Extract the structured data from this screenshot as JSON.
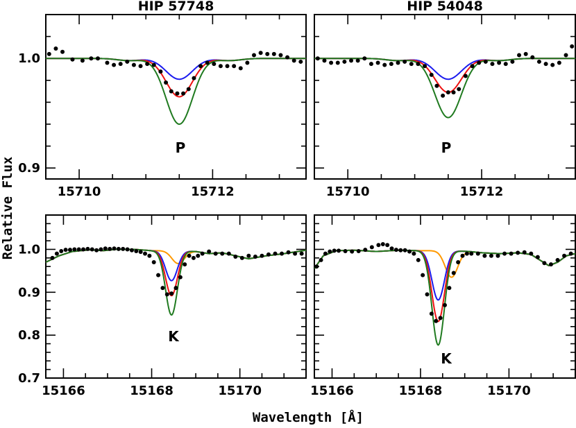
{
  "figure": {
    "xlabel": "Wavelength [Å]",
    "ylabel": "Relative Flux"
  },
  "colors": {
    "blue": "#1a1aee",
    "red": "#ee1111",
    "green": "#1f7a1f",
    "orange": "#ff9900",
    "obs": "#000000"
  },
  "chart_data": [
    {
      "type": "line",
      "title": "HIP 57748",
      "line_label": "P",
      "xlim": [
        15709.5,
        15713.4
      ],
      "ylim": [
        0.89,
        1.04
      ],
      "xticks": [
        15710,
        15712
      ],
      "yticks": [
        0.9,
        1.0
      ],
      "show_xtick_labels": true,
      "show_ytick_labels": true,
      "model": {
        "center": 15711.5,
        "continuum_dip": 0.002
      },
      "series": [
        {
          "color": "blue",
          "depth": 0.019,
          "width": 0.28
        },
        {
          "color": "red",
          "depth": 0.035,
          "width": 0.28
        },
        {
          "color": "green",
          "depth": 0.06,
          "width": 0.28
        }
      ],
      "observed": [
        [
          15709.55,
          1.004
        ],
        [
          15709.65,
          1.009
        ],
        [
          15709.75,
          1.006
        ],
        [
          15709.9,
          0.999
        ],
        [
          15710.05,
          0.998
        ],
        [
          15710.18,
          1.0
        ],
        [
          15710.28,
          1.0
        ],
        [
          15710.42,
          0.996
        ],
        [
          15710.52,
          0.994
        ],
        [
          15710.62,
          0.995
        ],
        [
          15710.72,
          0.997
        ],
        [
          15710.82,
          0.994
        ],
        [
          15710.92,
          0.993
        ],
        [
          15711.02,
          0.995
        ],
        [
          15711.12,
          0.994
        ],
        [
          15711.22,
          0.988
        ],
        [
          15711.3,
          0.978
        ],
        [
          15711.38,
          0.97
        ],
        [
          15711.47,
          0.968
        ],
        [
          15711.56,
          0.968
        ],
        [
          15711.64,
          0.972
        ],
        [
          15711.72,
          0.982
        ],
        [
          15711.82,
          0.993
        ],
        [
          15711.92,
          0.996
        ],
        [
          15712.02,
          0.995
        ],
        [
          15712.12,
          0.993
        ],
        [
          15712.22,
          0.993
        ],
        [
          15712.32,
          0.993
        ],
        [
          15712.42,
          0.991
        ],
        [
          15712.52,
          0.996
        ],
        [
          15712.62,
          1.003
        ],
        [
          15712.72,
          1.005
        ],
        [
          15712.82,
          1.004
        ],
        [
          15712.92,
          1.004
        ],
        [
          15713.02,
          1.003
        ],
        [
          15713.12,
          1.001
        ],
        [
          15713.22,
          0.998
        ],
        [
          15713.32,
          0.997
        ]
      ]
    },
    {
      "type": "line",
      "title": "HIP 54048",
      "line_label": "P",
      "xlim": [
        15709.5,
        15713.4
      ],
      "ylim": [
        0.89,
        1.04
      ],
      "xticks": [
        15710,
        15712
      ],
      "yticks": [
        0.9,
        1.0
      ],
      "show_xtick_labels": true,
      "show_ytick_labels": false,
      "model": {
        "center": 15711.5,
        "continuum_dip": 0.002
      },
      "series": [
        {
          "color": "blue",
          "depth": 0.019,
          "width": 0.28
        },
        {
          "color": "red",
          "depth": 0.031,
          "width": 0.28
        },
        {
          "color": "green",
          "depth": 0.054,
          "width": 0.28
        }
      ],
      "observed": [
        [
          15709.55,
          1.0
        ],
        [
          15709.65,
          0.998
        ],
        [
          15709.75,
          0.996
        ],
        [
          15709.85,
          0.996
        ],
        [
          15709.95,
          0.997
        ],
        [
          15710.05,
          0.998
        ],
        [
          15710.15,
          0.998
        ],
        [
          15710.25,
          1.0
        ],
        [
          15710.35,
          0.995
        ],
        [
          15710.45,
          0.996
        ],
        [
          15710.55,
          0.994
        ],
        [
          15710.65,
          0.995
        ],
        [
          15710.75,
          0.996
        ],
        [
          15710.85,
          0.997
        ],
        [
          15710.95,
          0.995
        ],
        [
          15711.05,
          0.995
        ],
        [
          15711.15,
          0.993
        ],
        [
          15711.25,
          0.985
        ],
        [
          15711.33,
          0.975
        ],
        [
          15711.42,
          0.966
        ],
        [
          15711.5,
          0.969
        ],
        [
          15711.58,
          0.969
        ],
        [
          15711.66,
          0.972
        ],
        [
          15711.76,
          0.984
        ],
        [
          15711.86,
          0.993
        ],
        [
          15711.96,
          0.996
        ],
        [
          15712.06,
          0.997
        ],
        [
          15712.16,
          0.995
        ],
        [
          15712.26,
          0.996
        ],
        [
          15712.36,
          0.995
        ],
        [
          15712.46,
          0.997
        ],
        [
          15712.56,
          1.003
        ],
        [
          15712.66,
          1.004
        ],
        [
          15712.76,
          1.001
        ],
        [
          15712.86,
          0.997
        ],
        [
          15712.96,
          0.995
        ],
        [
          15713.06,
          0.994
        ],
        [
          15713.16,
          0.996
        ],
        [
          15713.26,
          1.003
        ],
        [
          15713.35,
          1.011
        ]
      ]
    },
    {
      "type": "line",
      "title": "",
      "line_label": "K",
      "xlim": [
        15165.6,
        15171.5
      ],
      "ylim": [
        0.7,
        1.08
      ],
      "xticks": [
        15166,
        15168,
        15170
      ],
      "yticks": [
        0.7,
        0.8,
        0.9,
        1.0
      ],
      "show_xtick_labels": true,
      "show_ytick_labels": true,
      "model": {
        "center": 15168.45,
        "continuum": [
          [
            15165.6,
            0.97
          ],
          [
            15165.9,
            0.985
          ],
          [
            15166.2,
            0.995
          ],
          [
            15166.6,
            0.999
          ],
          [
            15166.9,
            0.997
          ],
          [
            15167.2,
            1.0
          ],
          [
            15167.6,
            1.0
          ],
          [
            15168.0,
            0.997
          ],
          [
            15168.6,
            0.997
          ],
          [
            15169.0,
            0.995
          ],
          [
            15169.3,
            0.99
          ],
          [
            15169.6,
            0.992
          ],
          [
            15169.9,
            0.985
          ],
          [
            15170.2,
            0.978
          ],
          [
            15170.6,
            0.985
          ],
          [
            15171.0,
            0.99
          ],
          [
            15171.5,
            0.998
          ]
        ]
      },
      "series": [
        {
          "color": "orange",
          "depth": 0.03,
          "width": 0.2,
          "center": 15168.6
        },
        {
          "color": "blue",
          "depth": 0.07,
          "width": 0.19
        },
        {
          "color": "red",
          "depth": 0.105,
          "width": 0.19
        },
        {
          "color": "green",
          "depth": 0.15,
          "width": 0.19
        }
      ],
      "observed": [
        [
          15165.75,
          0.98
        ],
        [
          15165.85,
          0.99
        ],
        [
          15165.95,
          0.996
        ],
        [
          15166.05,
          0.999
        ],
        [
          15166.15,
          0.999
        ],
        [
          15166.25,
          1.0
        ],
        [
          15166.35,
          1.0
        ],
        [
          15166.45,
          1.0
        ],
        [
          15166.55,
          1.001
        ],
        [
          15166.65,
          1.0
        ],
        [
          15166.75,
          0.998
        ],
        [
          15166.85,
          1.0
        ],
        [
          15166.95,
          1.002
        ],
        [
          15167.05,
          1.001
        ],
        [
          15167.15,
          1.002
        ],
        [
          15167.25,
          1.001
        ],
        [
          15167.35,
          1.001
        ],
        [
          15167.45,
          1.0
        ],
        [
          15167.55,
          0.998
        ],
        [
          15167.65,
          0.996
        ],
        [
          15167.75,
          0.994
        ],
        [
          15167.85,
          0.99
        ],
        [
          15167.95,
          0.985
        ],
        [
          15168.05,
          0.97
        ],
        [
          15168.15,
          0.94
        ],
        [
          15168.25,
          0.91
        ],
        [
          15168.35,
          0.895
        ],
        [
          15168.45,
          0.897
        ],
        [
          15168.55,
          0.91
        ],
        [
          15168.65,
          0.935
        ],
        [
          15168.75,
          0.965
        ],
        [
          15168.85,
          0.985
        ],
        [
          15168.95,
          0.98
        ],
        [
          15169.05,
          0.985
        ],
        [
          15169.15,
          0.99
        ],
        [
          15169.3,
          0.995
        ],
        [
          15169.45,
          0.99
        ],
        [
          15169.6,
          0.99
        ],
        [
          15169.75,
          0.99
        ],
        [
          15169.9,
          0.983
        ],
        [
          15170.05,
          0.98
        ],
        [
          15170.2,
          0.985
        ],
        [
          15170.35,
          0.983
        ],
        [
          15170.5,
          0.985
        ],
        [
          15170.65,
          0.988
        ],
        [
          15170.8,
          0.99
        ],
        [
          15170.95,
          0.99
        ],
        [
          15171.1,
          0.993
        ],
        [
          15171.25,
          0.99
        ],
        [
          15171.4,
          0.99
        ]
      ]
    },
    {
      "type": "line",
      "title": "",
      "line_label": "K",
      "xlim": [
        15165.6,
        15171.5
      ],
      "ylim": [
        0.7,
        1.08
      ],
      "xticks": [
        15166,
        15168,
        15170
      ],
      "yticks": [
        0.7,
        0.8,
        0.9,
        1.0
      ],
      "show_xtick_labels": true,
      "show_ytick_labels": false,
      "model": {
        "center": 15168.4,
        "continuum": [
          [
            15165.6,
            0.955
          ],
          [
            15165.8,
            0.985
          ],
          [
            15166.1,
            0.997
          ],
          [
            15166.5,
            0.998
          ],
          [
            15167.0,
            0.995
          ],
          [
            15167.5,
            0.998
          ],
          [
            15168.0,
            0.997
          ],
          [
            15168.7,
            0.997
          ],
          [
            15169.1,
            0.995
          ],
          [
            15169.4,
            0.992
          ],
          [
            15169.8,
            0.99
          ],
          [
            15170.2,
            0.992
          ],
          [
            15170.5,
            0.988
          ],
          [
            15170.7,
            0.975
          ],
          [
            15170.9,
            0.962
          ],
          [
            15171.1,
            0.97
          ],
          [
            15171.3,
            0.985
          ],
          [
            15171.5,
            0.99
          ]
        ]
      },
      "series": [
        {
          "color": "orange",
          "depth": 0.062,
          "width": 0.2,
          "center": 15168.7
        },
        {
          "color": "blue",
          "depth": 0.115,
          "width": 0.2
        },
        {
          "color": "red",
          "depth": 0.165,
          "width": 0.2
        },
        {
          "color": "green",
          "depth": 0.22,
          "width": 0.2
        }
      ],
      "observed": [
        [
          15165.65,
          0.96
        ],
        [
          15165.75,
          0.975
        ],
        [
          15165.85,
          0.99
        ],
        [
          15165.95,
          0.995
        ],
        [
          15166.05,
          0.997
        ],
        [
          15166.15,
          0.997
        ],
        [
          15166.3,
          0.996
        ],
        [
          15166.45,
          0.995
        ],
        [
          15166.6,
          0.996
        ],
        [
          15166.75,
          0.999
        ],
        [
          15166.9,
          1.005
        ],
        [
          15167.05,
          1.01
        ],
        [
          15167.15,
          1.012
        ],
        [
          15167.25,
          1.01
        ],
        [
          15167.35,
          1.002
        ],
        [
          15167.45,
          0.999
        ],
        [
          15167.55,
          0.998
        ],
        [
          15167.65,
          0.998
        ],
        [
          15167.75,
          0.995
        ],
        [
          15167.85,
          0.99
        ],
        [
          15167.95,
          0.975
        ],
        [
          15168.05,
          0.94
        ],
        [
          15168.15,
          0.895
        ],
        [
          15168.25,
          0.85
        ],
        [
          15168.35,
          0.833
        ],
        [
          15168.45,
          0.84
        ],
        [
          15168.55,
          0.87
        ],
        [
          15168.65,
          0.91
        ],
        [
          15168.75,
          0.945
        ],
        [
          15168.85,
          0.97
        ],
        [
          15168.95,
          0.985
        ],
        [
          15169.05,
          0.99
        ],
        [
          15169.15,
          0.99
        ],
        [
          15169.3,
          0.99
        ],
        [
          15169.45,
          0.985
        ],
        [
          15169.6,
          0.985
        ],
        [
          15169.75,
          0.985
        ],
        [
          15169.9,
          0.99
        ],
        [
          15170.05,
          0.99
        ],
        [
          15170.2,
          0.992
        ],
        [
          15170.35,
          0.993
        ],
        [
          15170.5,
          0.99
        ],
        [
          15170.65,
          0.982
        ],
        [
          15170.8,
          0.968
        ],
        [
          15170.95,
          0.965
        ],
        [
          15171.1,
          0.975
        ],
        [
          15171.25,
          0.985
        ],
        [
          15171.4,
          0.99
        ]
      ]
    }
  ]
}
